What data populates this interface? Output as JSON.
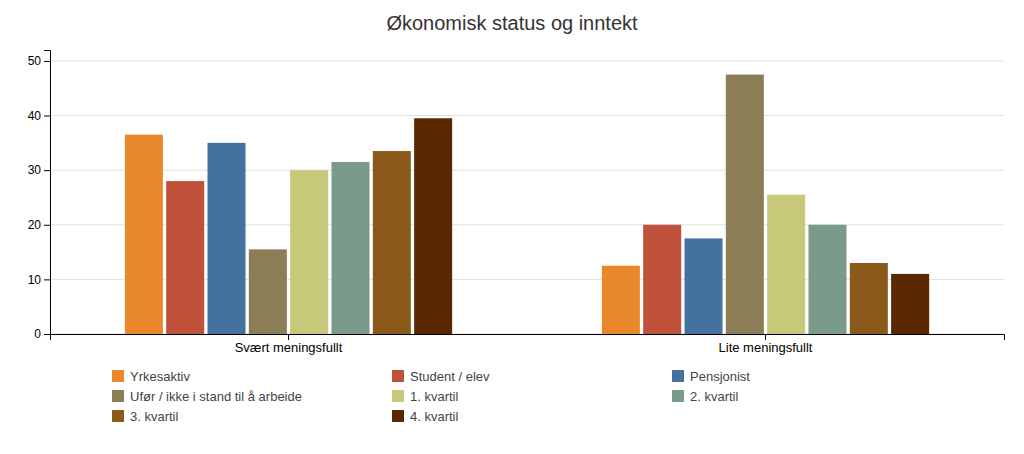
{
  "chart_data": {
    "type": "bar",
    "title": "Økonomisk status og inntekt",
    "categories": [
      "Svært meningsfullt",
      "Lite meningsfullt"
    ],
    "series": [
      {
        "name": "Yrkesaktiv",
        "color": "#E8882A",
        "values": [
          36.5,
          12.5
        ]
      },
      {
        "name": "Student / elev",
        "color": "#C0513A",
        "values": [
          28.0,
          20.0
        ]
      },
      {
        "name": "Pensjonist",
        "color": "#4472A0",
        "values": [
          35.0,
          17.5
        ]
      },
      {
        "name": "Ufør / ikke i stand til å arbeide",
        "color": "#8B7D55",
        "values": [
          15.5,
          47.5
        ]
      },
      {
        "name": "1. kvartil",
        "color": "#C8C87A",
        "values": [
          30.0,
          25.5
        ]
      },
      {
        "name": "2. kvartil",
        "color": "#7A9A8A",
        "values": [
          31.5,
          20.0
        ]
      },
      {
        "name": "3. kvartil",
        "color": "#8B5A1A",
        "values": [
          33.5,
          13.0
        ]
      },
      {
        "name": "4. kvartil",
        "color": "#5A2800",
        "values": [
          39.5,
          11.0
        ]
      }
    ],
    "ylim": [
      0,
      52
    ],
    "yticks": [
      0,
      10,
      20,
      30,
      40,
      50
    ],
    "grid": true,
    "legend": "bottom"
  }
}
